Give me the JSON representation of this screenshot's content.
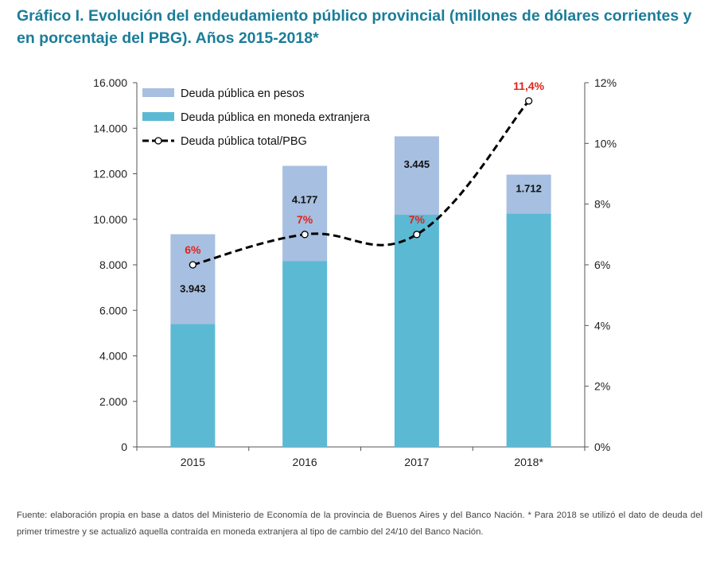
{
  "title": "Gráfico I. Evolución del endeudamiento público provincial (millones de dólares corrientes y en porcentaje del PBG). Años 2015-2018*",
  "source": "Fuente: elaboración propia en base a datos del Ministerio de Economía de la provincia de Buenos Aires y del Banco Nación. * Para 2018 se utilizó el dato de deuda del primer trimestre y se actualizó aquella contraída en moneda extranjera al tipo de cambio del 24/10 del Banco Nación.",
  "colors": {
    "pesos": "#a7bfe0",
    "foreign": "#5cb9d4",
    "line": "#000000",
    "pct_label": "#e2231a",
    "title": "#1a7d99"
  },
  "chart_data": {
    "type": "bar",
    "stacked": true,
    "categories": [
      "2015",
      "2016",
      "2017",
      "2018*"
    ],
    "series": [
      {
        "name": "Deuda pública en moneda extranjera",
        "values": [
          5400,
          8170,
          10200,
          10250
        ]
      },
      {
        "name": "Deuda pública en pesos",
        "values": [
          3943,
          4177,
          3445,
          1712
        ]
      }
    ],
    "bar_labels": [
      "3.943",
      "4.177",
      "3.445",
      "1.712"
    ],
    "line_series": {
      "name": "Deuda pública total/PBG",
      "axis": "right",
      "values": [
        6,
        7,
        7,
        11.4
      ],
      "labels": [
        "6%",
        "7%",
        "7%",
        "11,4%"
      ]
    },
    "legend": [
      "Deuda pública en pesos",
      "Deuda pública en moneda extranjera",
      "Deuda pública total/PBG"
    ],
    "legend_position": "top-left",
    "ylim": [
      0,
      16000
    ],
    "yticks": [
      0,
      2000,
      4000,
      6000,
      8000,
      10000,
      12000,
      14000,
      16000
    ],
    "ytick_labels": [
      "0",
      "2.000",
      "4.000",
      "6.000",
      "8.000",
      "10.000",
      "12.000",
      "14.000",
      "16.000"
    ],
    "y2lim": [
      0,
      12
    ],
    "y2ticks": [
      0,
      2,
      4,
      6,
      8,
      10,
      12
    ],
    "y2tick_labels": [
      "0%",
      "2%",
      "4%",
      "6%",
      "8%",
      "10%",
      "12%"
    ],
    "grid": false
  }
}
